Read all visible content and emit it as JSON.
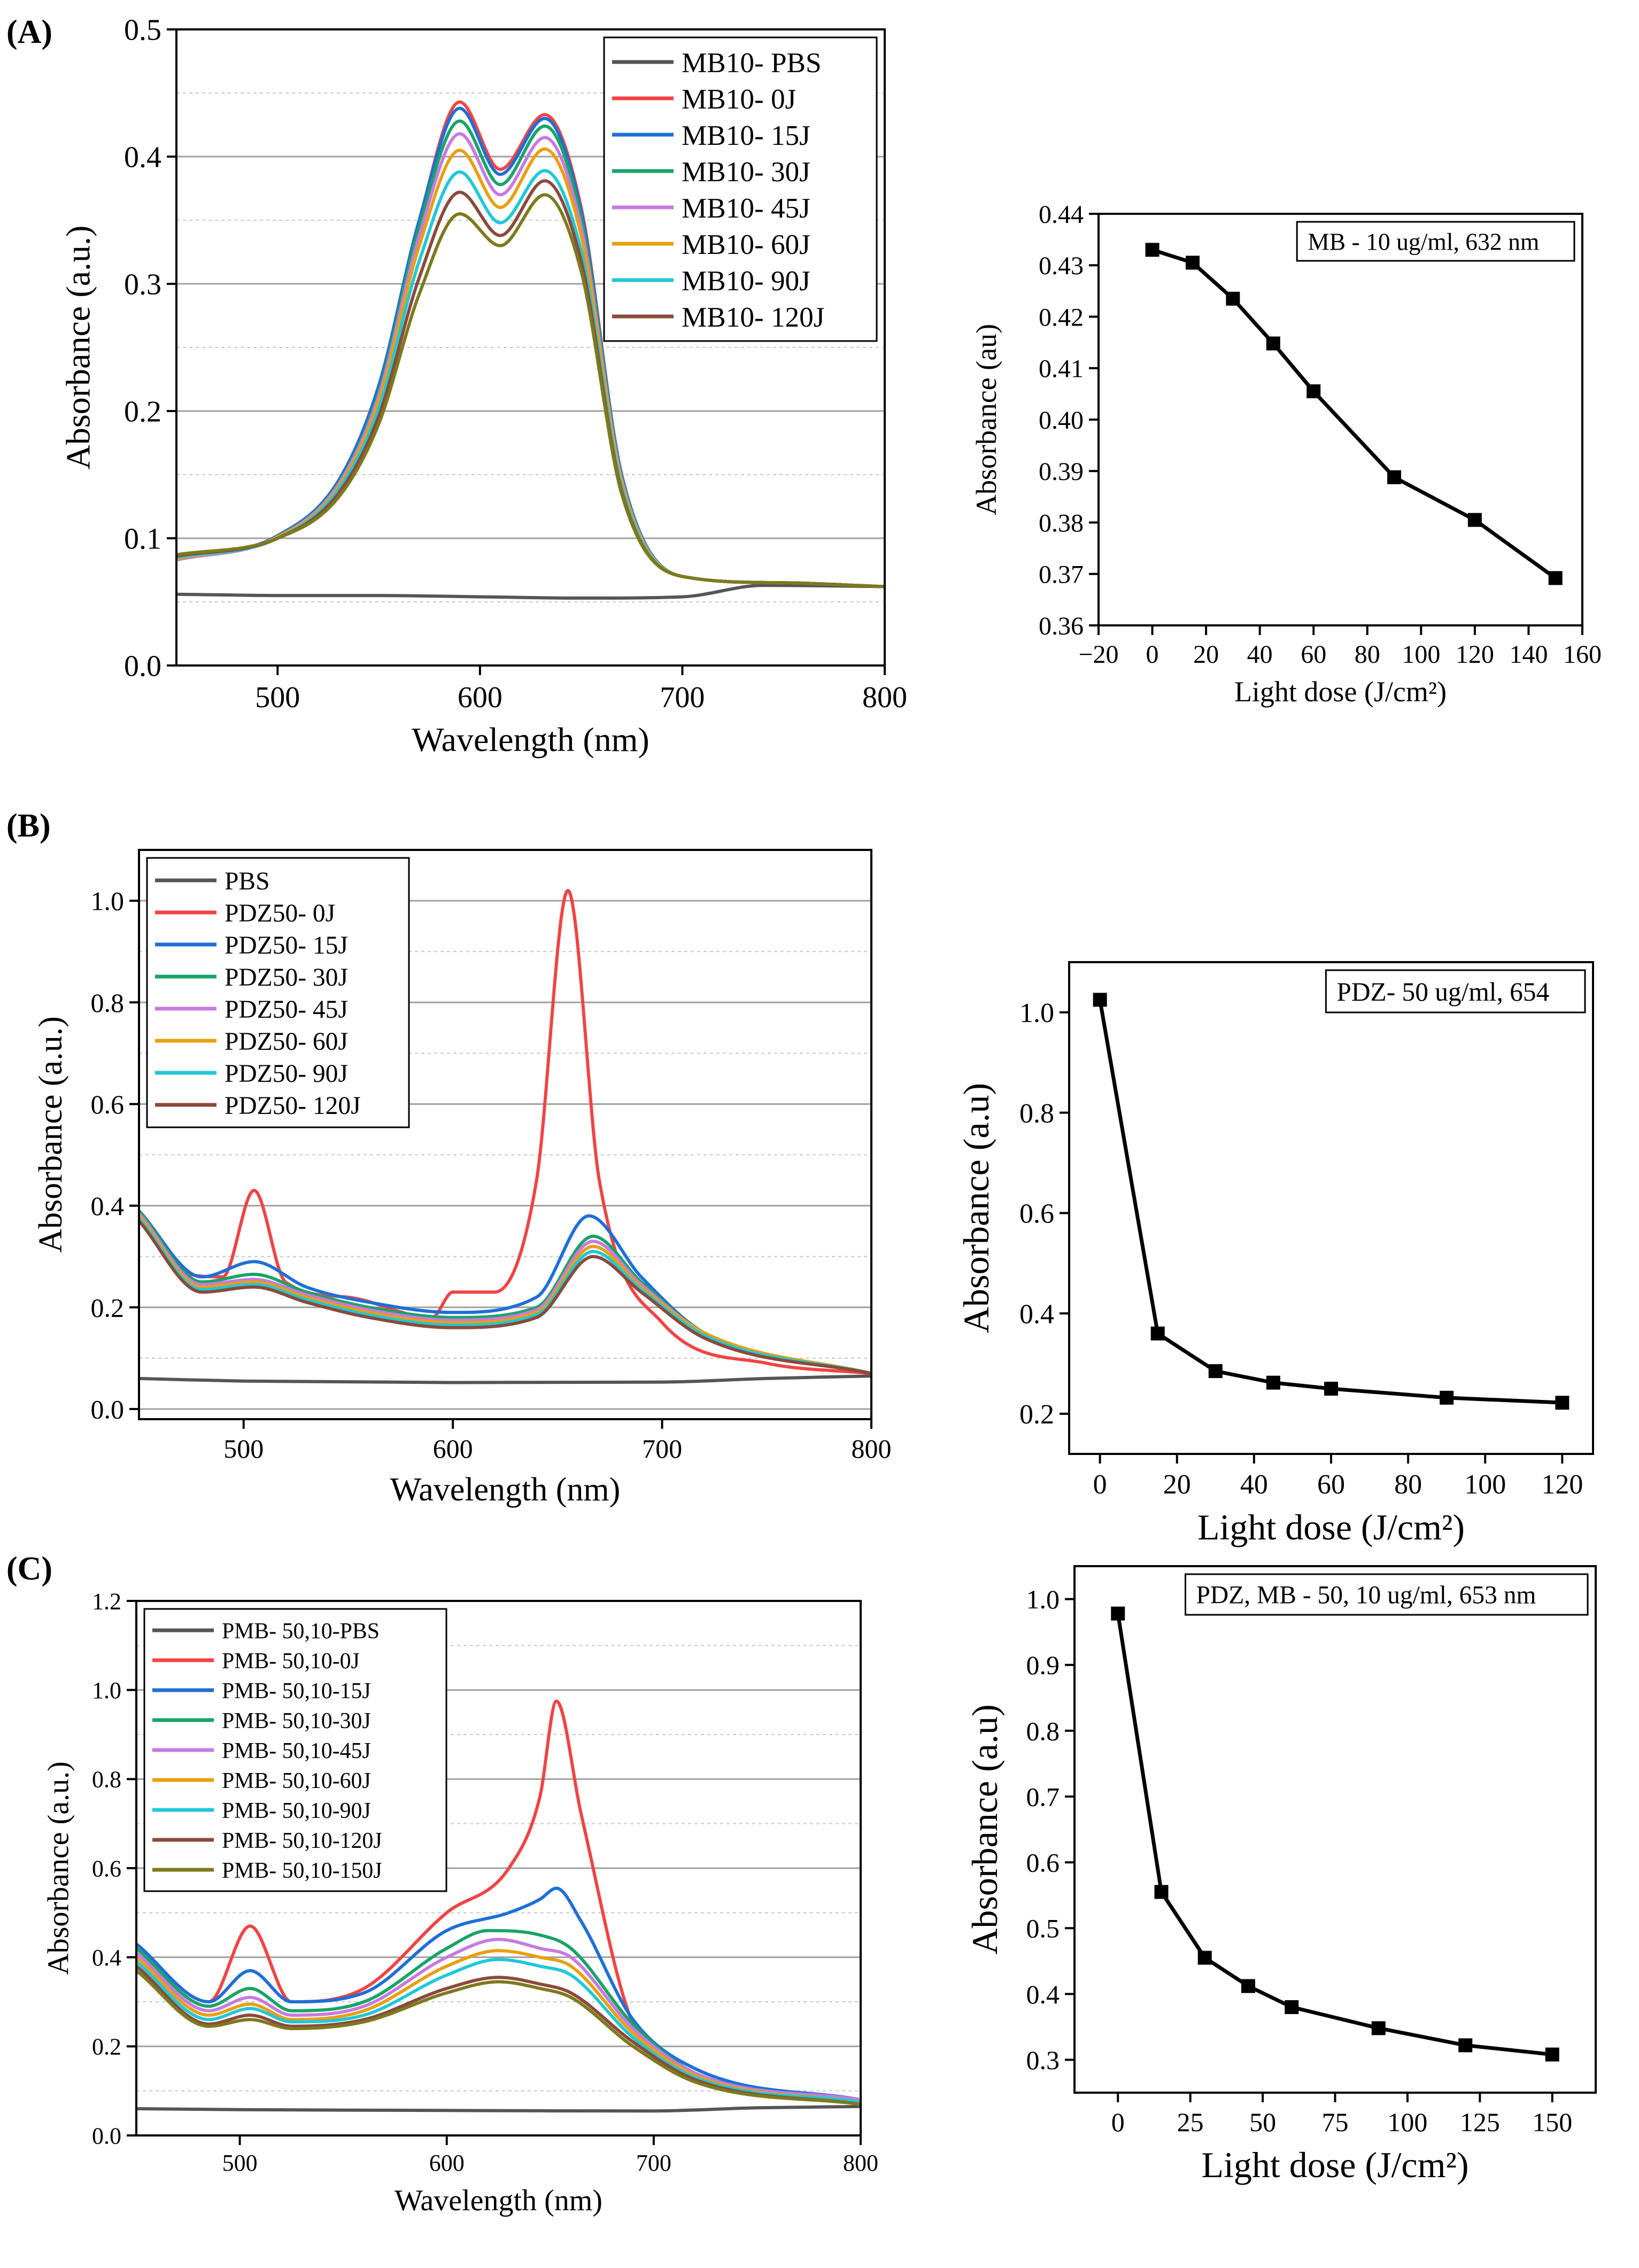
{
  "panel_labels": [
    "(A)",
    "(B)",
    "(C)"
  ],
  "chart_data": [
    {
      "type": "line",
      "title": "",
      "xlabel": "Wavelength (nm)",
      "ylabel": "Absorbance (a.u.)",
      "xlim": [
        450,
        800
      ],
      "ylim": [
        0.0,
        0.5
      ],
      "xticks": [
        500,
        600,
        700,
        800
      ],
      "yticks": [
        0.0,
        0.1,
        0.2,
        0.3,
        0.4,
        0.5
      ],
      "tick_decimals": 1,
      "grid": true,
      "legend_position": "top-right",
      "series": [
        {
          "name": "MB10- PBS",
          "color": "#555555",
          "x": [
            450,
            500,
            550,
            600,
            650,
            700,
            740,
            800
          ],
          "y": [
            0.056,
            0.055,
            0.055,
            0.054,
            0.053,
            0.054,
            0.063,
            0.062
          ]
        },
        {
          "name": "MB10- 0J",
          "color": "#f04444",
          "x": [
            450,
            500,
            530,
            550,
            570,
            590,
            610,
            632,
            650,
            670,
            700,
            750,
            800
          ],
          "y": [
            0.083,
            0.102,
            0.145,
            0.22,
            0.35,
            0.443,
            0.39,
            0.433,
            0.36,
            0.15,
            0.07,
            0.065,
            0.062
          ]
        },
        {
          "name": "MB10- 15J",
          "color": "#1f6fd6",
          "x": [
            450,
            500,
            530,
            550,
            570,
            590,
            610,
            632,
            650,
            670,
            700,
            750,
            800
          ],
          "y": [
            0.083,
            0.102,
            0.145,
            0.22,
            0.35,
            0.438,
            0.386,
            0.43,
            0.357,
            0.15,
            0.07,
            0.065,
            0.062
          ]
        },
        {
          "name": "MB10- 30J",
          "color": "#1aa468",
          "x": [
            450,
            500,
            530,
            550,
            570,
            590,
            610,
            632,
            650,
            670,
            700,
            750,
            800
          ],
          "y": [
            0.083,
            0.101,
            0.143,
            0.215,
            0.345,
            0.428,
            0.378,
            0.424,
            0.352,
            0.148,
            0.07,
            0.065,
            0.062
          ]
        },
        {
          "name": "MB10- 45J",
          "color": "#c77ae0",
          "x": [
            450,
            500,
            530,
            550,
            570,
            590,
            610,
            632,
            650,
            670,
            700,
            750,
            800
          ],
          "y": [
            0.083,
            0.101,
            0.142,
            0.212,
            0.338,
            0.418,
            0.37,
            0.415,
            0.345,
            0.146,
            0.07,
            0.065,
            0.062
          ]
        },
        {
          "name": "MB10- 60J",
          "color": "#e8a010",
          "x": [
            450,
            500,
            530,
            550,
            570,
            590,
            610,
            632,
            650,
            670,
            700,
            750,
            800
          ],
          "y": [
            0.084,
            0.101,
            0.14,
            0.208,
            0.33,
            0.405,
            0.36,
            0.406,
            0.338,
            0.144,
            0.07,
            0.065,
            0.062
          ]
        },
        {
          "name": "MB10- 90J",
          "color": "#20c8d8",
          "x": [
            450,
            500,
            530,
            550,
            570,
            590,
            610,
            632,
            650,
            670,
            700,
            750,
            800
          ],
          "y": [
            0.085,
            0.1,
            0.138,
            0.202,
            0.318,
            0.388,
            0.348,
            0.389,
            0.326,
            0.14,
            0.07,
            0.065,
            0.062
          ]
        },
        {
          "name": "MB10- 120J",
          "color": "#8b4a3c",
          "x": [
            450,
            500,
            530,
            550,
            570,
            590,
            610,
            632,
            650,
            670,
            700,
            750,
            800
          ],
          "y": [
            0.086,
            0.1,
            0.135,
            0.196,
            0.305,
            0.372,
            0.338,
            0.381,
            0.318,
            0.137,
            0.07,
            0.065,
            0.062
          ]
        },
        {
          "name": "",
          "color": "#7d7a1c",
          "x": [
            450,
            500,
            530,
            550,
            570,
            590,
            610,
            632,
            650,
            670,
            700,
            750,
            800
          ],
          "y": [
            0.087,
            0.1,
            0.132,
            0.19,
            0.292,
            0.355,
            0.33,
            0.37,
            0.31,
            0.135,
            0.07,
            0.065,
            0.062
          ]
        }
      ]
    },
    {
      "type": "line",
      "markers": true,
      "title": "",
      "xlabel": "Light dose (J/cm²)",
      "ylabel": "Absorbance (au)",
      "xlim": [
        -20,
        160
      ],
      "ylim": [
        0.36,
        0.44
      ],
      "xticks": [
        -20,
        0,
        20,
        40,
        60,
        80,
        100,
        120,
        140,
        160
      ],
      "yticks": [
        0.36,
        0.37,
        0.38,
        0.39,
        0.4,
        0.41,
        0.42,
        0.43,
        0.44
      ],
      "tick_decimals": 2,
      "grid": false,
      "annotation": "MB - 10 ug/ml, 632 nm",
      "series": [
        {
          "name": "",
          "color": "#000000",
          "x": [
            0,
            15,
            30,
            45,
            60,
            90,
            120,
            150
          ],
          "y": [
            0.433,
            0.4305,
            0.4235,
            0.4148,
            0.4055,
            0.3888,
            0.3805,
            0.3692
          ]
        }
      ]
    },
    {
      "type": "line",
      "title": "",
      "xlabel": "Wavelength (nm)",
      "ylabel": "Absorbance (a.u.)",
      "xlim": [
        450,
        800
      ],
      "ylim": [
        -0.02,
        1.1
      ],
      "xticks": [
        500,
        600,
        700,
        800
      ],
      "yticks": [
        0.0,
        0.2,
        0.4,
        0.6,
        0.8,
        1.0
      ],
      "tick_decimals": 1,
      "grid": true,
      "legend_position": "top-left",
      "series": [
        {
          "name": "PBS",
          "color": "#555555",
          "x": [
            450,
            500,
            600,
            700,
            750,
            800
          ],
          "y": [
            0.06,
            0.055,
            0.052,
            0.053,
            0.06,
            0.065
          ]
        },
        {
          "name": "PDZ50- 0J",
          "color": "#f04444",
          "x": [
            450,
            470,
            490,
            505,
            520,
            550,
            590,
            600,
            620,
            640,
            655,
            670,
            700,
            750,
            800
          ],
          "y": [
            0.38,
            0.27,
            0.26,
            0.43,
            0.25,
            0.22,
            0.18,
            0.23,
            0.23,
            0.45,
            1.02,
            0.45,
            0.17,
            0.09,
            0.07
          ]
        },
        {
          "name": "PDZ50- 15J",
          "color": "#1f6fd6",
          "x": [
            450,
            480,
            505,
            530,
            560,
            600,
            640,
            665,
            690,
            720,
            800
          ],
          "y": [
            0.39,
            0.26,
            0.29,
            0.24,
            0.21,
            0.19,
            0.22,
            0.38,
            0.26,
            0.15,
            0.07
          ]
        },
        {
          "name": "PDZ50- 30J",
          "color": "#1aa468",
          "x": [
            450,
            480,
            505,
            530,
            560,
            600,
            640,
            667,
            690,
            720,
            800
          ],
          "y": [
            0.39,
            0.25,
            0.265,
            0.23,
            0.2,
            0.18,
            0.2,
            0.34,
            0.25,
            0.15,
            0.07
          ]
        },
        {
          "name": "PDZ50- 45J",
          "color": "#c77ae0",
          "x": [
            450,
            480,
            505,
            530,
            560,
            600,
            640,
            667,
            690,
            720,
            800
          ],
          "y": [
            0.385,
            0.245,
            0.255,
            0.225,
            0.195,
            0.175,
            0.195,
            0.33,
            0.245,
            0.15,
            0.07
          ]
        },
        {
          "name": "PDZ50- 60J",
          "color": "#e8a010",
          "x": [
            450,
            480,
            505,
            530,
            560,
            600,
            640,
            667,
            690,
            720,
            800
          ],
          "y": [
            0.38,
            0.24,
            0.25,
            0.22,
            0.19,
            0.17,
            0.19,
            0.32,
            0.24,
            0.15,
            0.07
          ]
        },
        {
          "name": "PDZ50- 90J",
          "color": "#20c8d8",
          "x": [
            450,
            480,
            505,
            530,
            560,
            600,
            640,
            667,
            690,
            720,
            800
          ],
          "y": [
            0.375,
            0.235,
            0.245,
            0.215,
            0.185,
            0.165,
            0.185,
            0.31,
            0.235,
            0.145,
            0.07
          ]
        },
        {
          "name": "PDZ50- 120J",
          "color": "#8b4a3c",
          "x": [
            450,
            480,
            505,
            530,
            560,
            600,
            640,
            667,
            690,
            720,
            800
          ],
          "y": [
            0.37,
            0.23,
            0.24,
            0.21,
            0.18,
            0.16,
            0.18,
            0.3,
            0.23,
            0.14,
            0.07
          ]
        }
      ]
    },
    {
      "type": "line",
      "markers": true,
      "title": "",
      "xlabel": "Light dose (J/cm²)",
      "ylabel": "Absorbance (a.u)",
      "xlim": [
        -8,
        128
      ],
      "ylim": [
        0.12,
        1.1
      ],
      "xticks": [
        0,
        20,
        40,
        60,
        80,
        100,
        120
      ],
      "yticks": [
        0.2,
        0.4,
        0.6,
        0.8,
        1.0
      ],
      "tick_decimals": 1,
      "grid": false,
      "annotation": "PDZ- 50 ug/ml, 654",
      "series": [
        {
          "name": "",
          "color": "#000000",
          "x": [
            0,
            15,
            30,
            45,
            60,
            90,
            120
          ],
          "y": [
            1.025,
            0.36,
            0.285,
            0.262,
            0.25,
            0.232,
            0.222
          ]
        }
      ]
    },
    {
      "type": "line",
      "title": "",
      "xlabel": "Wavelength (nm)",
      "ylabel": "Absorbance (a.u.)",
      "xlim": [
        450,
        800
      ],
      "ylim": [
        0.0,
        1.2
      ],
      "xticks": [
        500,
        600,
        700,
        800
      ],
      "yticks": [
        0.0,
        0.2,
        0.4,
        0.6,
        0.8,
        1.0,
        1.2
      ],
      "tick_decimals": 1,
      "grid": true,
      "legend_position": "top-left",
      "series": [
        {
          "name": "PMB- 50,10-PBS",
          "color": "#555555",
          "x": [
            450,
            500,
            600,
            700,
            750,
            800
          ],
          "y": [
            0.06,
            0.058,
            0.056,
            0.055,
            0.062,
            0.065
          ]
        },
        {
          "name": "PMB- 50,10-0J",
          "color": "#f04444",
          "x": [
            450,
            485,
            505,
            525,
            560,
            600,
            630,
            645,
            653,
            665,
            690,
            720,
            800
          ],
          "y": [
            0.43,
            0.3,
            0.47,
            0.3,
            0.33,
            0.5,
            0.6,
            0.76,
            0.975,
            0.72,
            0.25,
            0.14,
            0.08
          ]
        },
        {
          "name": "PMB- 50,10-15J",
          "color": "#1f6fd6",
          "x": [
            450,
            485,
            505,
            525,
            560,
            600,
            630,
            645,
            653,
            665,
            690,
            720,
            800
          ],
          "y": [
            0.43,
            0.3,
            0.37,
            0.3,
            0.32,
            0.46,
            0.5,
            0.53,
            0.555,
            0.48,
            0.26,
            0.15,
            0.08
          ]
        },
        {
          "name": "PMB- 50,10-30J",
          "color": "#1aa468",
          "x": [
            450,
            485,
            505,
            525,
            560,
            600,
            620,
            645,
            660,
            690,
            720,
            800
          ],
          "y": [
            0.42,
            0.29,
            0.33,
            0.28,
            0.3,
            0.42,
            0.46,
            0.45,
            0.42,
            0.25,
            0.14,
            0.08
          ]
        },
        {
          "name": "PMB- 50,10-45J",
          "color": "#c77ae0",
          "x": [
            450,
            485,
            505,
            525,
            560,
            600,
            625,
            645,
            660,
            690,
            720,
            800
          ],
          "y": [
            0.41,
            0.28,
            0.31,
            0.27,
            0.29,
            0.4,
            0.44,
            0.42,
            0.4,
            0.24,
            0.14,
            0.08
          ]
        },
        {
          "name": "PMB- 50,10-60J",
          "color": "#e8a010",
          "x": [
            450,
            485,
            505,
            525,
            560,
            600,
            625,
            645,
            660,
            690,
            720,
            800
          ],
          "y": [
            0.4,
            0.27,
            0.295,
            0.26,
            0.28,
            0.38,
            0.415,
            0.4,
            0.38,
            0.23,
            0.135,
            0.075
          ]
        },
        {
          "name": "PMB- 50,10-90J",
          "color": "#20c8d8",
          "x": [
            450,
            485,
            505,
            525,
            560,
            600,
            625,
            645,
            660,
            690,
            720,
            800
          ],
          "y": [
            0.39,
            0.26,
            0.285,
            0.255,
            0.27,
            0.36,
            0.395,
            0.38,
            0.36,
            0.22,
            0.13,
            0.075
          ]
        },
        {
          "name": "PMB- 50,10-120J",
          "color": "#8b4a3c",
          "x": [
            450,
            485,
            505,
            525,
            560,
            600,
            625,
            645,
            660,
            690,
            720,
            800
          ],
          "y": [
            0.38,
            0.25,
            0.27,
            0.245,
            0.26,
            0.33,
            0.355,
            0.34,
            0.32,
            0.21,
            0.125,
            0.07
          ]
        },
        {
          "name": "PMB- 50,10-150J",
          "color": "#7d7a1c",
          "x": [
            450,
            485,
            505,
            525,
            560,
            600,
            625,
            645,
            660,
            690,
            720,
            800
          ],
          "y": [
            0.37,
            0.245,
            0.26,
            0.24,
            0.255,
            0.32,
            0.345,
            0.33,
            0.31,
            0.2,
            0.12,
            0.07
          ]
        }
      ]
    },
    {
      "type": "line",
      "markers": true,
      "title": "",
      "xlabel": "Light dose (J/cm²)",
      "ylabel": "Absorbance (a.u)",
      "xlim": [
        -15,
        165
      ],
      "ylim": [
        0.25,
        1.05
      ],
      "xticks": [
        0,
        25,
        50,
        75,
        100,
        125,
        150
      ],
      "yticks": [
        0.3,
        0.4,
        0.5,
        0.6,
        0.7,
        0.8,
        0.9,
        1.0
      ],
      "tick_decimals": 1,
      "grid": false,
      "annotation": "PDZ, MB - 50, 10 ug/ml, 653 nm",
      "series": [
        {
          "name": "",
          "color": "#000000",
          "x": [
            0,
            15,
            30,
            45,
            60,
            90,
            120,
            150
          ],
          "y": [
            0.978,
            0.555,
            0.455,
            0.412,
            0.38,
            0.348,
            0.322,
            0.308
          ]
        }
      ]
    }
  ]
}
